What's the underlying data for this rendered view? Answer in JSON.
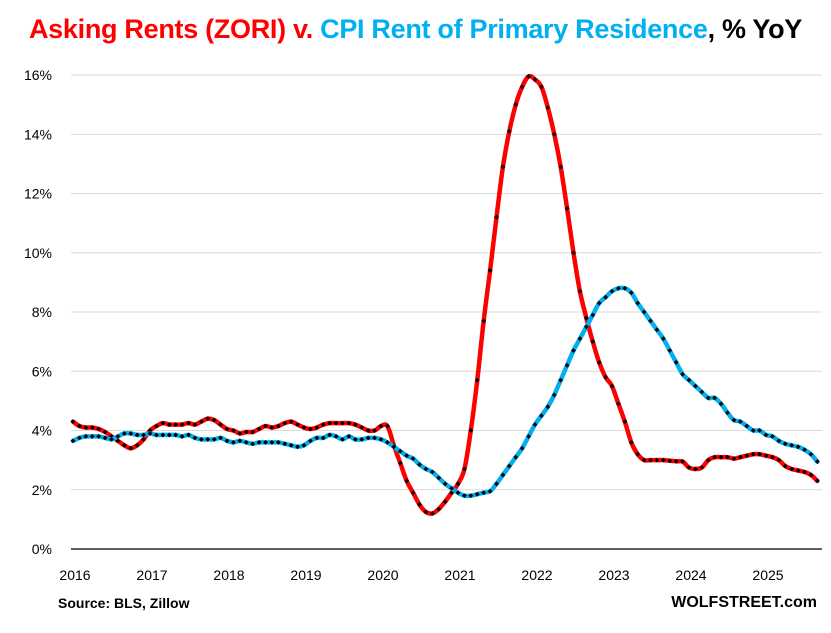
{
  "chart_data": {
    "type": "line",
    "title": {
      "part1": "Asking Rents (ZORI) v. ",
      "part2": "CPI Rent of Primary Residence",
      "part3": ", %  YoY"
    },
    "xlabel": "",
    "ylabel": "",
    "ylim": [
      0,
      16
    ],
    "yticks": [
      0,
      2,
      4,
      6,
      8,
      10,
      12,
      14,
      16
    ],
    "ytick_labels": [
      "0%",
      "2%",
      "4%",
      "6%",
      "8%",
      "10%",
      "12%",
      "14%",
      "16%"
    ],
    "xticks": [
      "2016",
      "2017",
      "2018",
      "2019",
      "2020",
      "2021",
      "2022",
      "2023",
      "2024",
      "2025"
    ],
    "x_start": "2016-01",
    "x_frequency": "monthly",
    "grid": true,
    "colors": {
      "zori": "#ff0000",
      "cpi": "#00b0f0",
      "markers": "#000000"
    },
    "series": [
      {
        "name": "Asking Rents (ZORI)",
        "color": "#ff0000",
        "values": [
          4.3,
          4.15,
          4.1,
          4.1,
          4.05,
          3.95,
          3.8,
          3.65,
          3.5,
          3.4,
          3.5,
          3.7,
          4.0,
          4.15,
          4.25,
          4.2,
          4.2,
          4.2,
          4.25,
          4.2,
          4.3,
          4.4,
          4.35,
          4.2,
          4.05,
          4.0,
          3.9,
          3.95,
          3.95,
          4.05,
          4.15,
          4.1,
          4.15,
          4.25,
          4.3,
          4.2,
          4.1,
          4.05,
          4.1,
          4.2,
          4.25,
          4.25,
          4.25,
          4.25,
          4.2,
          4.1,
          4.0,
          4.0,
          4.15,
          4.15,
          3.5,
          2.9,
          2.3,
          1.9,
          1.5,
          1.25,
          1.2,
          1.35,
          1.6,
          1.9,
          2.2,
          2.7,
          4.0,
          5.7,
          7.7,
          9.4,
          11.2,
          12.9,
          14.1,
          15.0,
          15.6,
          15.95,
          15.85,
          15.6,
          14.9,
          14.0,
          12.9,
          11.5,
          10.0,
          8.7,
          7.8,
          7.0,
          6.3,
          5.8,
          5.5,
          4.9,
          4.3,
          3.6,
          3.2,
          3.0,
          3.0,
          3.0,
          3.0,
          2.98,
          2.96,
          2.95,
          2.75,
          2.7,
          2.75,
          3.0,
          3.1,
          3.1,
          3.1,
          3.05,
          3.1,
          3.15,
          3.2,
          3.2,
          3.15,
          3.1,
          3.0,
          2.8,
          2.7,
          2.65,
          2.6,
          2.5,
          2.3
        ]
      },
      {
        "name": "CPI Rent of Primary Residence",
        "color": "#00b0f0",
        "values": [
          3.65,
          3.75,
          3.8,
          3.8,
          3.8,
          3.75,
          3.7,
          3.8,
          3.9,
          3.9,
          3.85,
          3.85,
          3.9,
          3.85,
          3.85,
          3.85,
          3.85,
          3.8,
          3.85,
          3.75,
          3.7,
          3.7,
          3.7,
          3.75,
          3.65,
          3.6,
          3.65,
          3.6,
          3.55,
          3.6,
          3.6,
          3.6,
          3.6,
          3.55,
          3.5,
          3.45,
          3.5,
          3.65,
          3.75,
          3.75,
          3.85,
          3.8,
          3.7,
          3.8,
          3.7,
          3.7,
          3.75,
          3.75,
          3.7,
          3.6,
          3.45,
          3.3,
          3.15,
          3.05,
          2.85,
          2.7,
          2.6,
          2.4,
          2.2,
          2.05,
          1.9,
          1.8,
          1.8,
          1.85,
          1.9,
          1.95,
          2.2,
          2.5,
          2.8,
          3.1,
          3.4,
          3.8,
          4.2,
          4.5,
          4.8,
          5.2,
          5.7,
          6.2,
          6.7,
          7.1,
          7.5,
          7.9,
          8.3,
          8.5,
          8.7,
          8.8,
          8.8,
          8.65,
          8.3,
          8.0,
          7.7,
          7.4,
          7.1,
          6.7,
          6.3,
          5.9,
          5.7,
          5.5,
          5.3,
          5.1,
          5.1,
          4.9,
          4.6,
          4.35,
          4.3,
          4.15,
          4.0,
          4.0,
          3.85,
          3.8,
          3.65,
          3.55,
          3.5,
          3.45,
          3.35,
          3.2,
          2.95
        ]
      }
    ],
    "source": "Source: BLS, Zillow",
    "watermark": "WOLFSTREET.com",
    "legend": "none (title color-coded)"
  }
}
